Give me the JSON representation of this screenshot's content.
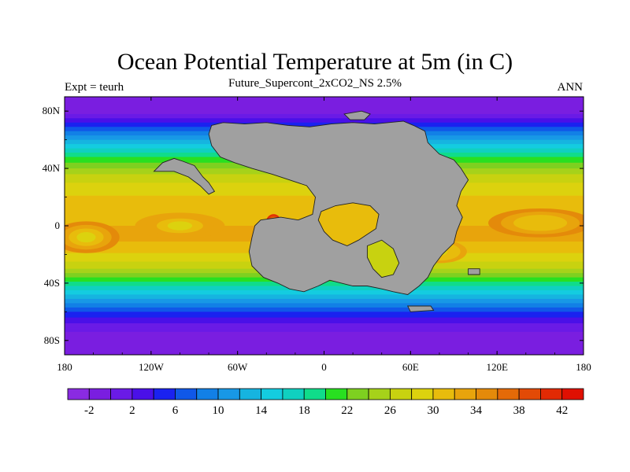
{
  "chart_data": {
    "type": "heatmap",
    "title": "Ocean Potential Temperature at 5m (in C)",
    "subtitle": "Future_Supercont_2xCO2_NS 2.5%",
    "left_label": "Expt = teurh",
    "right_label": "ANN",
    "x_range": [
      -180,
      180
    ],
    "y_range": [
      -90,
      90
    ],
    "x_ticks": [
      {
        "value": -180,
        "label": "180"
      },
      {
        "value": -120,
        "label": "120W"
      },
      {
        "value": -60,
        "label": "60W"
      },
      {
        "value": 0,
        "label": "0"
      },
      {
        "value": 60,
        "label": "60E"
      },
      {
        "value": 120,
        "label": "120E"
      },
      {
        "value": 180,
        "label": "180"
      }
    ],
    "y_ticks": [
      {
        "value": 80,
        "label": "80N"
      },
      {
        "value": 40,
        "label": "40N"
      },
      {
        "value": 0,
        "label": "0"
      },
      {
        "value": -40,
        "label": "40S"
      },
      {
        "value": -80,
        "label": "80S"
      }
    ],
    "colorbar": {
      "levels": [
        -4,
        -2,
        0,
        2,
        4,
        6,
        8,
        10,
        12,
        14,
        16,
        18,
        20,
        22,
        24,
        26,
        28,
        30,
        32,
        34,
        36,
        38,
        40,
        42,
        44
      ],
      "tick_labels": [
        "-2",
        "2",
        "6",
        "10",
        "14",
        "18",
        "22",
        "26",
        "30",
        "34",
        "38",
        "42"
      ],
      "tick_values": [
        -2,
        2,
        6,
        10,
        14,
        18,
        22,
        26,
        30,
        34,
        38,
        42
      ],
      "colors": [
        "#8a2be2",
        "#7a1ee0",
        "#6a1be6",
        "#4a10e8",
        "#1a22f0",
        "#1058e8",
        "#1280e6",
        "#1898e6",
        "#16b4e0",
        "#14cce0",
        "#10d0c0",
        "#10dc8a",
        "#28e020",
        "#7ed020",
        "#a6d21a",
        "#c8d210",
        "#dcd20e",
        "#e8bc0c",
        "#e8a40c",
        "#e48a0a",
        "#e46a08",
        "#e24a06",
        "#e22a04",
        "#e01002"
      ]
    },
    "zonal_profile": [
      {
        "lat": 90,
        "temp": -1.8
      },
      {
        "lat": 82,
        "temp": -1.5
      },
      {
        "lat": 76,
        "temp": 1
      },
      {
        "lat": 70,
        "temp": 5
      },
      {
        "lat": 64,
        "temp": 9
      },
      {
        "lat": 58,
        "temp": 13
      },
      {
        "lat": 52,
        "temp": 17
      },
      {
        "lat": 46,
        "temp": 21
      },
      {
        "lat": 40,
        "temp": 24
      },
      {
        "lat": 34,
        "temp": 27
      },
      {
        "lat": 26,
        "temp": 29
      },
      {
        "lat": 18,
        "temp": 30.5
      },
      {
        "lat": 10,
        "temp": 31.5
      },
      {
        "lat": 0,
        "temp": 32
      },
      {
        "lat": -8,
        "temp": 32.5
      },
      {
        "lat": -16,
        "temp": 31
      },
      {
        "lat": -24,
        "temp": 28.5
      },
      {
        "lat": -30,
        "temp": 26
      },
      {
        "lat": -36,
        "temp": 22
      },
      {
        "lat": -42,
        "temp": 18
      },
      {
        "lat": -48,
        "temp": 14
      },
      {
        "lat": -54,
        "temp": 10
      },
      {
        "lat": -60,
        "temp": 6
      },
      {
        "lat": -66,
        "temp": 3
      },
      {
        "lat": -72,
        "temp": 0.5
      },
      {
        "lat": -80,
        "temp": -1.2
      },
      {
        "lat": -90,
        "temp": -1.8
      }
    ],
    "warm_pools": [
      {
        "lon": -165,
        "lat": -8,
        "temp": 34,
        "rx": 22,
        "ry": 10
      },
      {
        "lon": -100,
        "lat": 0,
        "temp": 33.5,
        "rx": 30,
        "ry": 8
      },
      {
        "lon": 150,
        "lat": 2,
        "temp": 34.5,
        "rx": 35,
        "ry": 9
      },
      {
        "lon": 80,
        "lat": -18,
        "temp": 33,
        "rx": 18,
        "ry": 7
      },
      {
        "lon": -35,
        "lat": 3,
        "temp": 40,
        "rx": 4,
        "ry": 4
      }
    ],
    "land_color": "#a0a0a0",
    "land_masses": [
      {
        "name": "supercontinent",
        "points": [
          [
            -78,
            70
          ],
          [
            -70,
            72
          ],
          [
            -55,
            71
          ],
          [
            -40,
            72
          ],
          [
            -25,
            70
          ],
          [
            -10,
            69
          ],
          [
            5,
            71
          ],
          [
            20,
            72
          ],
          [
            35,
            71
          ],
          [
            55,
            73
          ],
          [
            62,
            70
          ],
          [
            70,
            66
          ],
          [
            72,
            58
          ],
          [
            80,
            50
          ],
          [
            90,
            46
          ],
          [
            95,
            40
          ],
          [
            100,
            32
          ],
          [
            95,
            24
          ],
          [
            92,
            14
          ],
          [
            96,
            6
          ],
          [
            92,
            -4
          ],
          [
            90,
            -12
          ],
          [
            82,
            -20
          ],
          [
            76,
            -28
          ],
          [
            72,
            -36
          ],
          [
            66,
            -42
          ],
          [
            58,
            -48
          ],
          [
            48,
            -46
          ],
          [
            40,
            -44
          ],
          [
            30,
            -42
          ],
          [
            20,
            -42
          ],
          [
            12,
            -40
          ],
          [
            4,
            -38
          ],
          [
            -4,
            -42
          ],
          [
            -14,
            -46
          ],
          [
            -24,
            -44
          ],
          [
            -32,
            -40
          ],
          [
            -42,
            -36
          ],
          [
            -50,
            -28
          ],
          [
            -52,
            -18
          ],
          [
            -50,
            -8
          ],
          [
            -48,
            0
          ],
          [
            -44,
            4
          ],
          [
            -30,
            6
          ],
          [
            -18,
            4
          ],
          [
            -8,
            8
          ],
          [
            -6,
            20
          ],
          [
            -12,
            28
          ],
          [
            -24,
            32
          ],
          [
            -36,
            36
          ],
          [
            -50,
            40
          ],
          [
            -62,
            44
          ],
          [
            -72,
            48
          ],
          [
            -78,
            56
          ],
          [
            -80,
            64
          ]
        ]
      },
      {
        "name": "northwest-peninsula",
        "points": [
          [
            -118,
            38
          ],
          [
            -112,
            44
          ],
          [
            -104,
            47
          ],
          [
            -98,
            45
          ],
          [
            -90,
            42
          ],
          [
            -84,
            34
          ],
          [
            -80,
            30
          ],
          [
            -76,
            24
          ],
          [
            -80,
            22
          ],
          [
            -86,
            28
          ],
          [
            -94,
            34
          ],
          [
            -104,
            38
          ],
          [
            -112,
            38
          ]
        ]
      },
      {
        "name": "northeast-island",
        "points": [
          [
            14,
            78
          ],
          [
            26,
            80
          ],
          [
            32,
            78
          ],
          [
            28,
            74
          ],
          [
            18,
            74
          ]
        ]
      },
      {
        "name": "southern-island",
        "points": [
          [
            58,
            -56
          ],
          [
            74,
            -56
          ],
          [
            76,
            -59
          ],
          [
            60,
            -60
          ]
        ]
      },
      {
        "name": "east-island",
        "points": [
          [
            100,
            -30
          ],
          [
            108,
            -30
          ],
          [
            108,
            -34
          ],
          [
            100,
            -34
          ]
        ]
      }
    ],
    "interior_seas": [
      {
        "name": "equatorial-inland-sea",
        "points": [
          [
            -2,
            10
          ],
          [
            8,
            14
          ],
          [
            20,
            16
          ],
          [
            32,
            14
          ],
          [
            38,
            8
          ],
          [
            36,
            -2
          ],
          [
            30,
            -6
          ],
          [
            24,
            -10
          ],
          [
            16,
            -14
          ],
          [
            6,
            -10
          ],
          [
            0,
            -4
          ],
          [
            -4,
            4
          ]
        ],
        "temp": 31
      },
      {
        "name": "southern-inland-sea",
        "points": [
          [
            30,
            -14
          ],
          [
            40,
            -10
          ],
          [
            48,
            -16
          ],
          [
            52,
            -26
          ],
          [
            48,
            -34
          ],
          [
            40,
            -36
          ],
          [
            34,
            -30
          ],
          [
            30,
            -22
          ]
        ],
        "temp": 26
      }
    ],
    "colorbar_label_note": ""
  }
}
